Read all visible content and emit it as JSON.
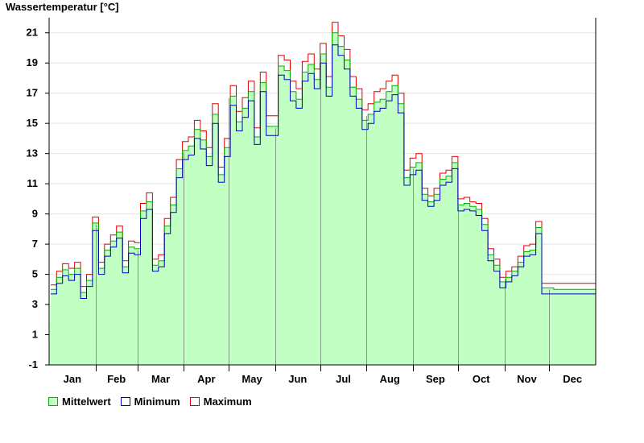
{
  "chart_data": {
    "type": "line",
    "title": "",
    "ylabel": "Wassertemperatur [°C]",
    "xlabel": "",
    "ylim": [
      -1,
      22
    ],
    "yticks": [
      -1,
      1,
      3,
      5,
      7,
      9,
      11,
      13,
      15,
      17,
      19,
      21
    ],
    "categories": [
      "Jan",
      "Feb",
      "Mar",
      "Apr",
      "May",
      "Jun",
      "Jul",
      "Aug",
      "Sep",
      "Oct",
      "Nov",
      "Dec"
    ],
    "grid": true,
    "legend_position": "bottom-left",
    "x": [
      1,
      5,
      9,
      13,
      17,
      21,
      25,
      29,
      33,
      37,
      41,
      45,
      49,
      53,
      57,
      61,
      65,
      69,
      73,
      77,
      81,
      85,
      89,
      93,
      97,
      101,
      105,
      109,
      113,
      117,
      121,
      125,
      129,
      133,
      137,
      141,
      145,
      149,
      153,
      157,
      161,
      165,
      169,
      173,
      177,
      181,
      185,
      189,
      193,
      197,
      201,
      205,
      209,
      213,
      217,
      221,
      225,
      229,
      233,
      237,
      241,
      245,
      249,
      253,
      257,
      261,
      265,
      269,
      273,
      277,
      281,
      285,
      289,
      293,
      297,
      301,
      305,
      309,
      313,
      317,
      321,
      325,
      329,
      333,
      337,
      341,
      345,
      349,
      353,
      357,
      361,
      365
    ],
    "series": [
      {
        "name": "Mittelwert",
        "color": "#00b000",
        "fill": "#c2ffc2",
        "values": [
          4.0,
          4.8,
          5.3,
          5.0,
          5.4,
          3.8,
          4.6,
          8.4,
          5.4,
          6.6,
          7.2,
          7.8,
          5.5,
          6.8,
          6.7,
          9.2,
          9.8,
          5.6,
          5.9,
          8.2,
          9.6,
          12.0,
          13.2,
          13.5,
          14.6,
          13.9,
          12.8,
          15.6,
          11.6,
          13.4,
          16.8,
          15.1,
          16.0,
          17.1,
          14.1,
          17.7,
          14.8,
          14.8,
          18.8,
          18.5,
          17.1,
          16.6,
          18.4,
          18.9,
          17.9,
          19.6,
          17.4,
          21.0,
          20.1,
          19.2,
          17.4,
          16.6,
          15.2,
          15.6,
          16.4,
          16.6,
          17.1,
          17.5,
          16.3,
          11.4,
          12.1,
          12.4,
          10.3,
          9.8,
          10.3,
          11.3,
          11.5,
          12.4,
          9.6,
          9.7,
          9.5,
          9.3,
          8.3,
          6.3,
          5.6,
          4.5,
          4.8,
          5.2,
          5.8,
          6.5,
          6.6,
          8.1,
          4.1,
          4.1,
          4.0,
          4.0,
          4.0,
          4.0,
          4.0,
          4.0,
          4.0,
          4.0
        ]
      },
      {
        "name": "Minimum",
        "color": "#0000c0",
        "values": [
          3.7,
          4.4,
          4.9,
          4.6,
          5.0,
          3.4,
          4.2,
          7.9,
          5.0,
          6.2,
          6.8,
          7.4,
          5.1,
          6.4,
          6.3,
          8.7,
          9.3,
          5.2,
          5.5,
          7.7,
          9.1,
          11.4,
          12.6,
          12.9,
          14.0,
          13.3,
          12.2,
          15.0,
          11.1,
          12.8,
          16.2,
          14.5,
          15.4,
          16.5,
          13.6,
          17.1,
          14.2,
          14.2,
          18.2,
          17.9,
          16.5,
          16.0,
          17.8,
          18.3,
          17.3,
          19.0,
          16.8,
          20.2,
          19.5,
          18.6,
          16.8,
          16.0,
          14.6,
          15.0,
          15.8,
          16.0,
          16.5,
          16.9,
          15.7,
          10.9,
          11.6,
          11.9,
          9.9,
          9.5,
          9.9,
          10.9,
          11.1,
          12.0,
          9.2,
          9.3,
          9.2,
          8.9,
          7.9,
          5.9,
          5.2,
          4.1,
          4.5,
          4.9,
          5.5,
          6.2,
          6.3,
          7.7,
          3.7,
          3.7,
          3.7,
          3.7,
          3.7,
          3.7,
          3.7,
          3.7,
          3.7,
          3.7
        ]
      },
      {
        "name": "Maximum",
        "color": "#e00000",
        "values": [
          4.3,
          5.2,
          5.7,
          5.4,
          5.8,
          4.2,
          5.0,
          8.8,
          5.8,
          7.0,
          7.6,
          8.2,
          5.9,
          7.2,
          7.1,
          9.7,
          10.4,
          6.0,
          6.3,
          8.7,
          10.1,
          12.6,
          13.8,
          14.1,
          15.2,
          14.5,
          13.4,
          16.3,
          12.1,
          14.0,
          17.5,
          15.8,
          16.7,
          17.8,
          14.7,
          18.4,
          15.5,
          15.5,
          19.5,
          19.2,
          17.8,
          17.3,
          19.1,
          19.6,
          18.6,
          20.3,
          18.1,
          21.7,
          20.8,
          19.9,
          18.1,
          17.3,
          15.9,
          16.3,
          17.1,
          17.3,
          17.8,
          18.2,
          17.0,
          11.9,
          12.7,
          13.0,
          10.7,
          10.2,
          10.7,
          11.7,
          11.9,
          12.8,
          10.0,
          10.1,
          9.8,
          9.7,
          8.7,
          6.7,
          6.0,
          4.8,
          5.2,
          5.5,
          6.2,
          6.9,
          7.0,
          8.5,
          4.4,
          4.4,
          4.4,
          4.4,
          4.4,
          4.4,
          4.4,
          4.4,
          4.4,
          4.4
        ]
      }
    ]
  }
}
